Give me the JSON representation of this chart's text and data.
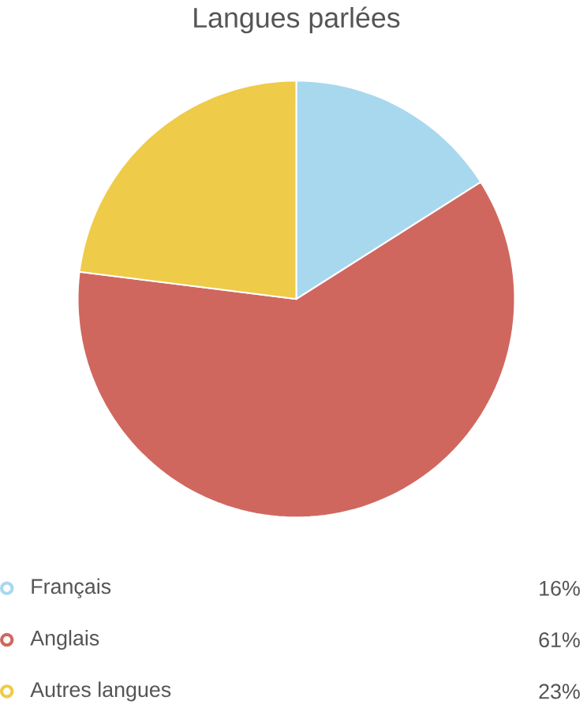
{
  "chart_data": {
    "type": "pie",
    "title": "Langues parlées",
    "categories": [
      "Français",
      "Anglais",
      "Autres langues"
    ],
    "values": [
      16,
      61,
      23
    ],
    "colors": [
      "#a8d8ee",
      "#d0675f",
      "#eecb48"
    ],
    "value_labels": [
      "16%",
      "61%",
      "23%"
    ],
    "legend": "bottom"
  }
}
